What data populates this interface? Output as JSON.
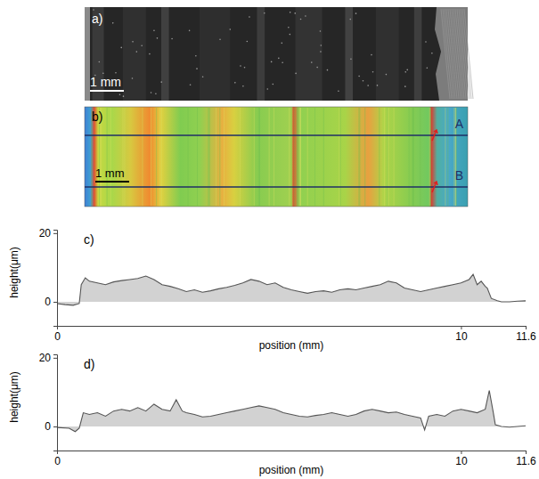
{
  "images": [
    {
      "label": "a)",
      "scale_bar": "1 mm"
    },
    {
      "label": "b)",
      "scale_bar": "1 mm",
      "line_labels": [
        "A",
        "B"
      ]
    }
  ],
  "chart_data": [
    {
      "type": "area",
      "title": "c)",
      "x_label": "position (mm)",
      "y_label": "height(μm)",
      "xlim": [
        0,
        11.6
      ],
      "xticks": [
        0,
        10,
        11.6
      ],
      "ylim": [
        -7,
        21
      ],
      "yticks": [
        0,
        20
      ],
      "color": "#555555",
      "x": [
        0,
        0.2,
        0.4,
        0.55,
        0.6,
        0.7,
        0.8,
        1.0,
        1.2,
        1.4,
        1.6,
        1.8,
        2.0,
        2.2,
        2.4,
        2.6,
        2.8,
        3.0,
        3.2,
        3.4,
        3.6,
        3.8,
        4.0,
        4.2,
        4.4,
        4.6,
        4.8,
        5.0,
        5.2,
        5.4,
        5.6,
        5.8,
        6.0,
        6.2,
        6.4,
        6.6,
        6.8,
        7.0,
        7.2,
        7.4,
        7.6,
        7.8,
        8.0,
        8.2,
        8.4,
        8.6,
        8.8,
        9.0,
        9.2,
        9.4,
        9.6,
        9.8,
        10.0,
        10.2,
        10.3,
        10.4,
        10.5,
        10.6,
        10.65,
        10.75,
        10.9,
        11.0,
        11.2,
        11.4,
        11.6
      ],
      "values": [
        -0.5,
        -0.8,
        -1,
        -0.5,
        5,
        7,
        6,
        5.5,
        5,
        5.8,
        6.2,
        6.5,
        6.8,
        7.5,
        6.5,
        5,
        4.5,
        3.8,
        3,
        3.5,
        2.8,
        3.2,
        3.8,
        4.2,
        4.8,
        5.5,
        6.5,
        6,
        5,
        5.5,
        4.2,
        3.5,
        3,
        2.5,
        3,
        3.2,
        2.8,
        3.5,
        3.8,
        3.5,
        4,
        4.5,
        5,
        6,
        5.5,
        4,
        3.5,
        3,
        3.5,
        4,
        4.5,
        5,
        5.5,
        6.5,
        8,
        5,
        6,
        4.5,
        4,
        1,
        0.3,
        0,
        0,
        0.2,
        0.3
      ]
    },
    {
      "type": "area",
      "title": "d)",
      "x_label": "position (mm)",
      "y_label": "height(μm)",
      "xlim": [
        0,
        11.6
      ],
      "xticks": [
        0,
        10,
        11.6
      ],
      "ylim": [
        -7,
        21
      ],
      "yticks": [
        0,
        20
      ],
      "color": "#555555",
      "x": [
        0,
        0.3,
        0.45,
        0.55,
        0.65,
        0.8,
        1.0,
        1.2,
        1.4,
        1.6,
        1.8,
        2.0,
        2.2,
        2.4,
        2.6,
        2.8,
        2.95,
        3.1,
        3.2,
        3.4,
        3.6,
        3.8,
        4.0,
        4.2,
        4.4,
        4.6,
        4.8,
        5.0,
        5.2,
        5.4,
        5.6,
        5.8,
        6.0,
        6.2,
        6.4,
        6.6,
        6.8,
        7.0,
        7.2,
        7.4,
        7.6,
        7.8,
        8.0,
        8.2,
        8.4,
        8.6,
        8.8,
        9.0,
        9.1,
        9.2,
        9.4,
        9.6,
        9.8,
        10.0,
        10.2,
        10.4,
        10.6,
        10.7,
        10.8,
        10.85,
        11.0,
        11.2,
        11.4,
        11.6
      ],
      "values": [
        -0.3,
        -0.5,
        -1.5,
        -0.5,
        4,
        3.5,
        4,
        3,
        4.5,
        5,
        4.5,
        5.5,
        4.5,
        6.5,
        5,
        4.5,
        7.8,
        4.5,
        4,
        3.5,
        2.8,
        3,
        3.5,
        4,
        4.5,
        5,
        5.5,
        6,
        5.5,
        5,
        4,
        3.5,
        3,
        2.8,
        3.2,
        3.5,
        4,
        3.5,
        3,
        3.5,
        4.5,
        5,
        4.5,
        4,
        4.2,
        3.5,
        3,
        2.5,
        -1,
        3,
        3.5,
        3,
        4.5,
        5,
        4.5,
        4,
        5,
        10.5,
        4,
        0.5,
        0,
        -0.2,
        0,
        0.2
      ]
    }
  ]
}
